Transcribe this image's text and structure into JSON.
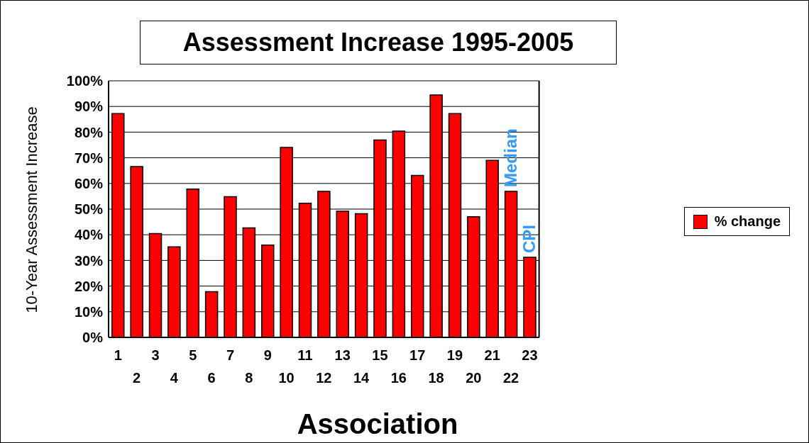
{
  "chart_data": {
    "type": "bar",
    "title": "Assessment Increase 1995-2005",
    "xlabel": "Association",
    "ylabel": "10-Year Assessment Increase",
    "categories": [
      "1",
      "2",
      "3",
      "4",
      "5",
      "6",
      "7",
      "8",
      "9",
      "10",
      "11",
      "12",
      "13",
      "14",
      "15",
      "16",
      "17",
      "18",
      "19",
      "20",
      "21",
      "22",
      "23"
    ],
    "series": [
      {
        "name": "% change",
        "color": "#ff0000",
        "values": [
          87.2,
          66.6,
          40.5,
          35.3,
          57.8,
          17.8,
          54.8,
          42.7,
          36.0,
          74.0,
          52.3,
          56.9,
          49.2,
          48.2,
          76.9,
          80.4,
          63.1,
          94.5,
          87.2,
          47.0,
          69.0,
          56.9,
          31.2
        ]
      }
    ],
    "ylim": [
      0,
      100
    ],
    "yticks": [
      {
        "value": 0,
        "label": "0%"
      },
      {
        "value": 10,
        "label": "10%"
      },
      {
        "value": 20,
        "label": "20%"
      },
      {
        "value": 30,
        "label": "30%"
      },
      {
        "value": 40,
        "label": "40%"
      },
      {
        "value": 50,
        "label": "50%"
      },
      {
        "value": 60,
        "label": "60%"
      },
      {
        "value": 70,
        "label": "70%"
      },
      {
        "value": 80,
        "label": "80%"
      },
      {
        "value": 90,
        "label": "90%"
      },
      {
        "value": 100,
        "label": "100%"
      }
    ],
    "annotations": [
      {
        "text": "Median",
        "x": "22",
        "y": 56.9
      },
      {
        "text": "CPI",
        "x": "23",
        "y": 31.2
      }
    ],
    "grid": "y",
    "legend": "right"
  }
}
